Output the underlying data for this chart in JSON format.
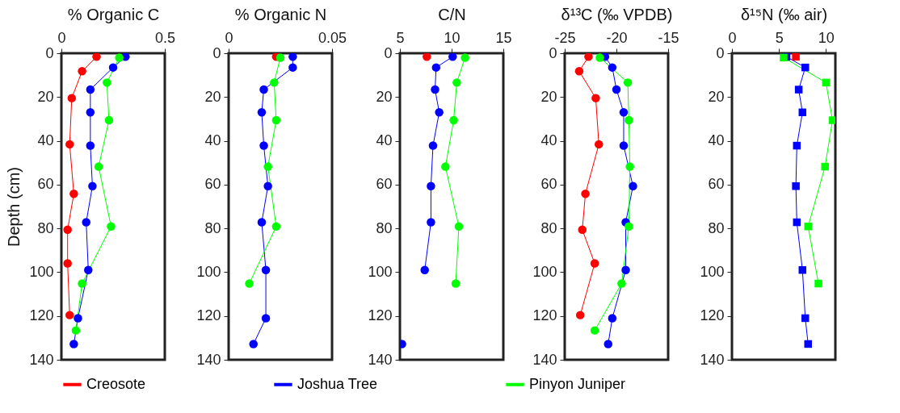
{
  "chart_data": [
    {
      "type": "line",
      "orientation": "horizontal",
      "xlabel": "% Organic C",
      "ylabel": "Depth (cm)",
      "xlim": [
        0,
        0.5
      ],
      "xticks": [
        0,
        0.5
      ],
      "ylim": [
        140,
        0
      ],
      "yticks": [
        0,
        20,
        40,
        60,
        80,
        100,
        120,
        140
      ],
      "marker": "circle",
      "legend": "bottom",
      "grid": false,
      "series": [
        {
          "name": "Creosote",
          "color": "#ff0000",
          "x": [
            1.6,
            8.2,
            20.5,
            41.6,
            64.2,
            80.6,
            96,
            119.6
          ],
          "values": [
            0.17,
            0.1,
            0.05,
            0.04,
            0.06,
            0.03,
            0.03,
            0.04
          ]
        },
        {
          "name": "Joshua Tree",
          "color": "#0000ff",
          "x": [
            1.6,
            6.5,
            16.6,
            27,
            42.2,
            60.7,
            77.2,
            99,
            121,
            132.8
          ],
          "values": [
            0.31,
            0.25,
            0.14,
            0.14,
            0.14,
            0.15,
            0.12,
            0.13,
            0.08,
            0.06
          ]
        },
        {
          "name": "Pinyon Juniper",
          "color": "#00ff00",
          "x": [
            2,
            13.4,
            30.6,
            51.8,
            79.1,
            105.2,
            126.6
          ],
          "values": [
            0.28,
            0.22,
            0.23,
            0.18,
            0.24,
            0.1,
            0.07
          ]
        }
      ]
    },
    {
      "type": "line",
      "orientation": "horizontal",
      "xlabel": "% Organic N",
      "xlim": [
        0,
        0.05
      ],
      "xticks": [
        0,
        0.05
      ],
      "ylim": [
        140,
        0
      ],
      "yticks": [
        0,
        20,
        40,
        60,
        80,
        100,
        120,
        140
      ],
      "marker": "circle",
      "legend": "bottom",
      "grid": false,
      "series": [
        {
          "name": "Creosote",
          "color": "#ff0000",
          "x": [
            1.6
          ],
          "values": [
            0.023
          ]
        },
        {
          "name": "Joshua Tree",
          "color": "#0000ff",
          "x": [
            1.6,
            6.5,
            16.6,
            27,
            42.2,
            60.7,
            77.2,
            99,
            121,
            132.8
          ],
          "values": [
            0.031,
            0.031,
            0.017,
            0.016,
            0.017,
            0.019,
            0.016,
            0.018,
            0.018,
            0.012
          ]
        },
        {
          "name": "Pinyon Juniper",
          "color": "#00ff00",
          "x": [
            2,
            13.4,
            30.6,
            51.8,
            79.1,
            105.2
          ],
          "values": [
            0.025,
            0.022,
            0.023,
            0.019,
            0.023,
            0.01
          ]
        }
      ]
    },
    {
      "type": "line",
      "orientation": "horizontal",
      "xlabel": "C/N",
      "xlim": [
        5,
        15
      ],
      "xticks": [
        5,
        10,
        15
      ],
      "ylim": [
        140,
        0
      ],
      "yticks": [
        0,
        20,
        40,
        60,
        80,
        100,
        120,
        140
      ],
      "marker": "circle",
      "legend": "bottom",
      "grid": false,
      "series": [
        {
          "name": "Creosote",
          "color": "#ff0000",
          "x": [
            1.6
          ],
          "values": [
            7.6
          ]
        },
        {
          "name": "Joshua Tree",
          "color": "#0000ff",
          "x": [
            1.6,
            6.5,
            16.6,
            27,
            42.2,
            60.7,
            77.2,
            99,
            121,
            132.8
          ],
          "values": [
            10.1,
            8.5,
            8.4,
            8.8,
            8.2,
            8.0,
            8.0,
            7.4,
            null,
            5.2
          ]
        },
        {
          "name": "Pinyon Juniper",
          "color": "#00ff00",
          "x": [
            2,
            13.4,
            30.6,
            51.8,
            79.1,
            105.2
          ],
          "values": [
            11.3,
            10.5,
            10.2,
            9.4,
            10.7,
            10.4
          ]
        }
      ]
    },
    {
      "type": "line",
      "orientation": "horizontal",
      "xlabel": "δ¹³C (‰ VPDB)",
      "xlim": [
        -25,
        -15
      ],
      "xticks": [
        -25,
        -20,
        -15
      ],
      "ylim": [
        140,
        0
      ],
      "yticks": [
        0,
        20,
        40,
        60,
        80,
        100,
        120,
        140
      ],
      "marker": "circle",
      "legend": "bottom",
      "grid": false,
      "series": [
        {
          "name": "Creosote",
          "color": "#ff0000",
          "x": [
            1.6,
            8.2,
            20.5,
            41.6,
            64.2,
            80.6,
            96,
            119.6
          ],
          "values": [
            -22.7,
            -23.6,
            -22.0,
            -21.7,
            -23.0,
            -23.3,
            -22.1,
            -23.5
          ]
        },
        {
          "name": "Joshua Tree",
          "color": "#0000ff",
          "x": [
            1.6,
            6.5,
            16.6,
            27,
            42.2,
            60.7,
            77.2,
            99,
            121,
            132.8
          ],
          "values": [
            -21.1,
            -20.4,
            -20.0,
            -19.3,
            -19.3,
            -18.4,
            -19.1,
            -19.1,
            -20.4,
            -20.8
          ]
        },
        {
          "name": "Pinyon Juniper",
          "color": "#00ff00",
          "x": [
            2,
            13.4,
            30.6,
            51.8,
            79.1,
            105.2,
            126.6
          ],
          "values": [
            -21.6,
            -18.9,
            -18.8,
            -18.7,
            -18.8,
            -19.5,
            -22.1
          ]
        }
      ]
    },
    {
      "type": "line",
      "orientation": "horizontal",
      "xlabel": "δ¹⁵N (‰ air)",
      "xlim": [
        0,
        11
      ],
      "xticks": [
        0,
        5,
        10
      ],
      "ylim": [
        140,
        0
      ],
      "yticks": [
        0,
        20,
        40,
        60,
        80,
        100,
        120,
        140
      ],
      "marker": "square",
      "legend": "bottom",
      "grid": false,
      "series": [
        {
          "name": "Creosote",
          "color": "#ff0000",
          "x": [
            1.6
          ],
          "values": [
            6.8
          ]
        },
        {
          "name": "Joshua Tree",
          "color": "#0000ff",
          "x": [
            1.6,
            6.5,
            16.6,
            27,
            42.2,
            60.7,
            77.2,
            99,
            121,
            132.8
          ],
          "values": [
            5.8,
            7.8,
            7.1,
            7.5,
            6.9,
            6.8,
            6.9,
            7.5,
            7.8,
            8.1
          ]
        },
        {
          "name": "Pinyon Juniper",
          "color": "#00ff00",
          "x": [
            2,
            13.4,
            30.6,
            51.8,
            79.1,
            105.2
          ],
          "values": [
            5.5,
            10.0,
            10.7,
            9.9,
            8.1,
            9.2
          ]
        }
      ]
    }
  ]
}
